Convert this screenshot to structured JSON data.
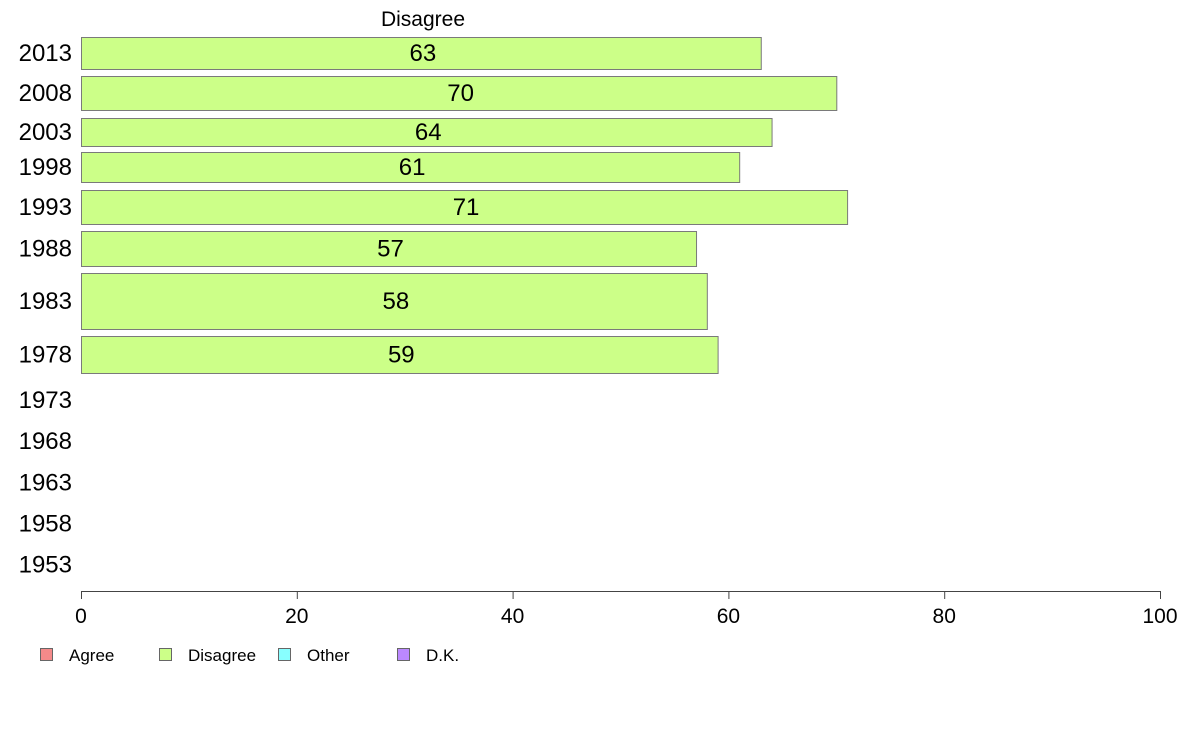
{
  "chart_data": {
    "type": "bar",
    "orientation": "horizontal",
    "title": "Disagree",
    "categories": [
      "2013",
      "2008",
      "2003",
      "1998",
      "1993",
      "1988",
      "1983",
      "1978",
      "1973",
      "1968",
      "1963",
      "1958",
      "1953"
    ],
    "series": [
      {
        "name": "Disagree",
        "values": [
          63,
          70,
          64,
          61,
          71,
          57,
          58,
          59,
          null,
          null,
          null,
          null,
          null
        ],
        "color": "#ccff88"
      }
    ],
    "data_labels": [
      "63",
      "70",
      "64",
      "61",
      "71",
      "57",
      "58",
      "59",
      "",
      "",
      "",
      "",
      ""
    ],
    "xlim": [
      0,
      100
    ],
    "xticks": [
      "0",
      "20",
      "40",
      "60",
      "80",
      "100"
    ],
    "grid": false,
    "legend_position": "bottom-left",
    "legend": [
      {
        "label": "Agree",
        "color": "#f48a8a"
      },
      {
        "label": "Disagree",
        "color": "#ccff88"
      },
      {
        "label": "Other",
        "color": "#88ffff"
      },
      {
        "label": "D.K.",
        "color": "#bb88ff"
      }
    ]
  }
}
